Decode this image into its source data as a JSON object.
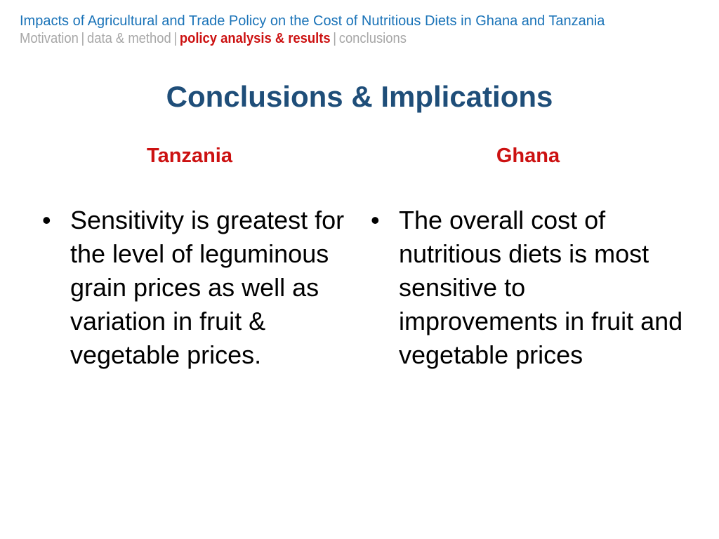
{
  "header": {
    "title": "Impacts of Agricultural and Trade Policy on the Cost of Nutritious Diets in Ghana and Tanzania",
    "breadcrumb": [
      {
        "label": "Motivation",
        "active": false
      },
      {
        "label": "data & method",
        "active": false
      },
      {
        "label": "policy analysis & results",
        "active": true
      },
      {
        "label": "conclusions",
        "active": false
      }
    ],
    "separator": "|"
  },
  "slide": {
    "title": "Conclusions & Implications"
  },
  "columns": [
    {
      "heading": "Tanzania",
      "bullets": [
        "Sensitivity is greatest for the level of leguminous grain prices as well as variation in fruit & vegetable prices."
      ]
    },
    {
      "heading": "Ghana",
      "bullets": [
        "The overall cost of nutritious diets is most sensitive to improvements in fruit and vegetable prices"
      ]
    }
  ],
  "bullet_glyph": "•",
  "colors": {
    "header_blue": "#1a73b8",
    "title_navy": "#1f4e79",
    "accent_red": "#cc1111",
    "muted_gray": "#a7a7a7"
  }
}
